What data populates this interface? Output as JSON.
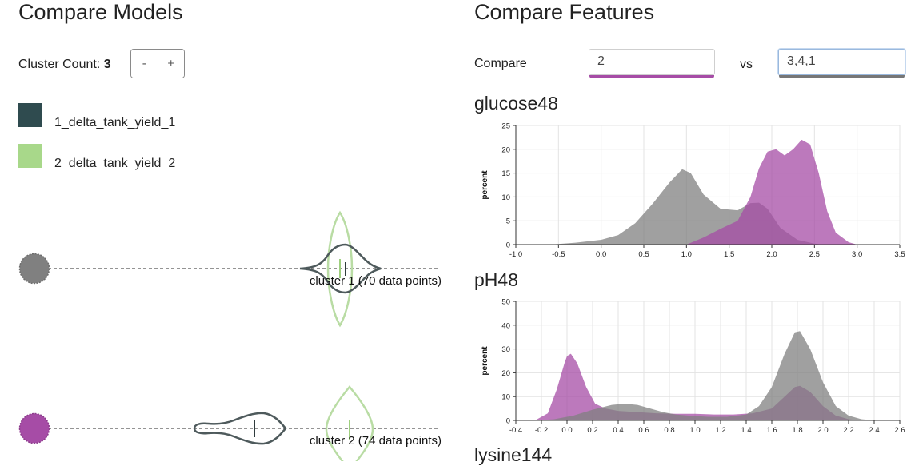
{
  "models": {
    "title": "Compare Models",
    "cluster_count_label": "Cluster Count:",
    "cluster_count_value": "3",
    "decrement_label": "-",
    "increment_label": "+",
    "legend": [
      {
        "label": "1_delta_tank_yield_1",
        "color": "#2f4b4f"
      },
      {
        "label": "2_delta_tank_yield_2",
        "color": "#a8d88a"
      }
    ],
    "clusters": [
      {
        "label": "cluster 1 (70 data points)",
        "dot_color": "#808080"
      },
      {
        "label": "cluster 2 (74 data points)",
        "dot_color": "#a64ca6"
      }
    ]
  },
  "features": {
    "title": "Compare Features",
    "compare_label": "Compare",
    "vs_label": "vs",
    "input_a": {
      "value": "2",
      "color": "#a64ca6"
    },
    "input_b": {
      "value": "3,4,1",
      "color": "#777777"
    },
    "colors": {
      "a": "#a64ca6",
      "b": "#808080"
    }
  },
  "chart_data": [
    {
      "type": "area",
      "title": "glucose48",
      "ylabel": "percent",
      "xlabel": "",
      "xlim": [
        -1.0,
        3.5
      ],
      "ylim": [
        0,
        25
      ],
      "xticks": [
        "-1.0",
        "-0.5",
        "0.0",
        "0.5",
        "1.0",
        "1.5",
        "2.0",
        "2.5",
        "3.0",
        "3.5"
      ],
      "yticks": [
        "0",
        "5",
        "10",
        "15",
        "20",
        "25"
      ],
      "series": [
        {
          "key": "b",
          "values": [
            [
              -0.6,
              0
            ],
            [
              -0.3,
              0.4
            ],
            [
              0,
              1
            ],
            [
              0.2,
              2
            ],
            [
              0.4,
              4.5
            ],
            [
              0.6,
              8.5
            ],
            [
              0.8,
              13
            ],
            [
              0.95,
              15.8
            ],
            [
              1.05,
              15
            ],
            [
              1.2,
              10.5
            ],
            [
              1.4,
              7.5
            ],
            [
              1.6,
              7.2
            ],
            [
              1.75,
              8.7
            ],
            [
              1.85,
              8.8
            ],
            [
              1.95,
              7.5
            ],
            [
              2.1,
              3.5
            ],
            [
              2.3,
              1
            ],
            [
              2.5,
              0.2
            ],
            [
              2.6,
              0
            ]
          ]
        },
        {
          "key": "a",
          "values": [
            [
              1.0,
              0
            ],
            [
              1.2,
              1.5
            ],
            [
              1.4,
              3.3
            ],
            [
              1.6,
              5
            ],
            [
              1.75,
              10
            ],
            [
              1.85,
              16
            ],
            [
              1.95,
              19.5
            ],
            [
              2.05,
              20
            ],
            [
              2.15,
              18.7
            ],
            [
              2.25,
              20
            ],
            [
              2.35,
              22
            ],
            [
              2.45,
              21
            ],
            [
              2.55,
              15
            ],
            [
              2.65,
              7
            ],
            [
              2.75,
              2.5
            ],
            [
              2.9,
              0.5
            ],
            [
              3.0,
              0
            ]
          ]
        }
      ]
    },
    {
      "type": "area",
      "title": "pH48",
      "ylabel": "percent",
      "xlabel": "",
      "xlim": [
        -0.4,
        2.6
      ],
      "ylim": [
        0,
        50
      ],
      "xticks": [
        "-0.4",
        "-0.2",
        "0.0",
        "0.2",
        "0.4",
        "0.6",
        "0.8",
        "1.0",
        "1.2",
        "1.4",
        "1.6",
        "1.8",
        "2.0",
        "2.2",
        "2.4",
        "2.6"
      ],
      "yticks": [
        "0",
        "10",
        "20",
        "30",
        "40",
        "50"
      ],
      "series": [
        {
          "key": "a",
          "values": [
            [
              -0.25,
              0
            ],
            [
              -0.15,
              3
            ],
            [
              -0.08,
              13
            ],
            [
              -0.02,
              24
            ],
            [
              0,
              27
            ],
            [
              0.03,
              28
            ],
            [
              0.08,
              24
            ],
            [
              0.15,
              14
            ],
            [
              0.22,
              7
            ],
            [
              0.3,
              5
            ],
            [
              0.4,
              4
            ],
            [
              0.55,
              3.5
            ],
            [
              0.7,
              3
            ],
            [
              0.85,
              2.8
            ],
            [
              1.0,
              2.8
            ],
            [
              1.15,
              2.5
            ],
            [
              1.3,
              2.5
            ],
            [
              1.45,
              3
            ],
            [
              1.6,
              5
            ],
            [
              1.7,
              10
            ],
            [
              1.78,
              14
            ],
            [
              1.82,
              14.5
            ],
            [
              1.9,
              12
            ],
            [
              2.0,
              6
            ],
            [
              2.1,
              2
            ],
            [
              2.2,
              0.5
            ],
            [
              2.3,
              0
            ]
          ]
        },
        {
          "key": "b",
          "values": [
            [
              -0.25,
              0
            ],
            [
              -0.1,
              0.5
            ],
            [
              0.05,
              2
            ],
            [
              0.2,
              4.5
            ],
            [
              0.35,
              6.5
            ],
            [
              0.45,
              7
            ],
            [
              0.55,
              6.5
            ],
            [
              0.65,
              5
            ],
            [
              0.75,
              3.5
            ],
            [
              0.85,
              2.5
            ],
            [
              0.95,
              2
            ],
            [
              1.1,
              1.5
            ],
            [
              1.25,
              1.5
            ],
            [
              1.4,
              2.5
            ],
            [
              1.5,
              6
            ],
            [
              1.6,
              14
            ],
            [
              1.7,
              28
            ],
            [
              1.78,
              37
            ],
            [
              1.82,
              37.5
            ],
            [
              1.9,
              30
            ],
            [
              2.0,
              16
            ],
            [
              2.1,
              6
            ],
            [
              2.2,
              2
            ],
            [
              2.3,
              0.5
            ],
            [
              2.4,
              0
            ]
          ]
        }
      ]
    }
  ],
  "partial_title": "lysine144"
}
